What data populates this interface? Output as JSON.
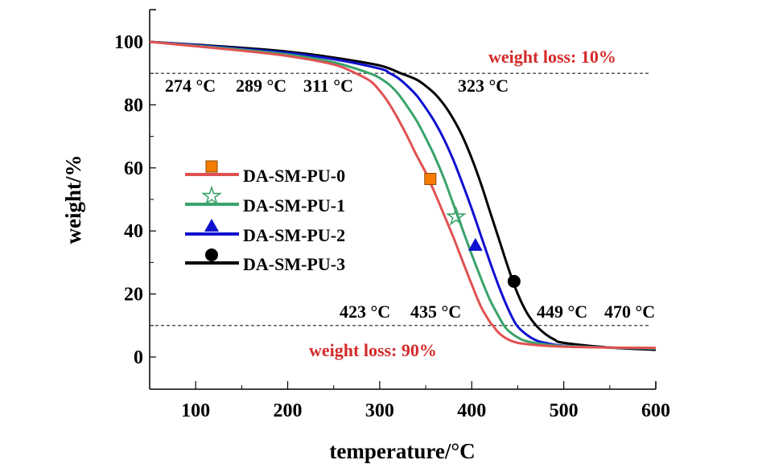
{
  "chart_data": {
    "type": "line",
    "title": "",
    "xlabel": "temperature/°C",
    "ylabel": "weight/%",
    "xlim": [
      50,
      600
    ],
    "ylim": [
      -10,
      110
    ],
    "x_ticks": [
      100,
      200,
      300,
      400,
      500,
      600
    ],
    "x_tick_labels": [
      "100",
      "200",
      "300",
      "400",
      "500",
      "600"
    ],
    "x_minor_ticks": [
      150,
      250,
      350,
      450,
      550
    ],
    "y_ticks": [
      0,
      20,
      40,
      60,
      80,
      100
    ],
    "y_tick_labels": [
      "0",
      "20",
      "40",
      "60",
      "80",
      "100"
    ],
    "y_minor_ticks": [
      10,
      30,
      50,
      70,
      90
    ],
    "grid": false,
    "legend_position": "center-left",
    "series": [
      {
        "name": "DA-SM-PU-0",
        "color": "#e05252",
        "marker": "square",
        "marker_color": "#f57c00",
        "marker_point": [
          355,
          56.5
        ],
        "x": [
          50,
          100,
          150,
          200,
          250,
          274,
          290,
          300,
          310,
          320,
          330,
          340,
          350,
          360,
          370,
          380,
          390,
          400,
          410,
          420,
          423,
          430,
          440,
          450,
          470,
          500,
          550,
          600
        ],
        "y": [
          100,
          98.6,
          97.2,
          95.5,
          92.8,
          90,
          87.5,
          84.5,
          80.5,
          75.5,
          70,
          64,
          58.5,
          52,
          45,
          38,
          30.5,
          23,
          16,
          11,
          10,
          7.5,
          5.5,
          4.5,
          3.8,
          3.3,
          3.0,
          2.9
        ]
      },
      {
        "name": "DA-SM-PU-1",
        "color": "#3aa36b",
        "marker": "star",
        "marker_color": "#3aa36b",
        "marker_point": [
          383,
          44.5
        ],
        "x": [
          50,
          100,
          150,
          200,
          250,
          289,
          300,
          310,
          320,
          330,
          340,
          350,
          360,
          370,
          380,
          390,
          400,
          410,
          420,
          430,
          435,
          440,
          450,
          460,
          480,
          500,
          550,
          600
        ],
        "y": [
          100,
          98.8,
          97.5,
          96,
          93.5,
          90,
          88.5,
          86.5,
          83.5,
          79.5,
          75,
          69.5,
          63.5,
          56.5,
          48.5,
          40.5,
          32.5,
          25,
          18,
          12.5,
          10,
          8.3,
          6.2,
          5.0,
          4.0,
          3.5,
          3.0,
          2.7
        ]
      },
      {
        "name": "DA-SM-PU-2",
        "color": "#1010d0",
        "marker": "triangle",
        "marker_color": "#1010d0",
        "marker_point": [
          404,
          35.5
        ],
        "x": [
          50,
          100,
          150,
          200,
          250,
          300,
          311,
          320,
          330,
          340,
          350,
          360,
          370,
          380,
          390,
          400,
          410,
          420,
          430,
          440,
          449,
          460,
          470,
          480,
          500,
          550,
          600
        ],
        "y": [
          100,
          99,
          97.8,
          96.5,
          94.5,
          91.5,
          90,
          88.5,
          86,
          83,
          79,
          74.5,
          69,
          62.5,
          55,
          47,
          38.5,
          30,
          22,
          15,
          10,
          7,
          5.3,
          4.5,
          3.6,
          3.0,
          2.6
        ]
      },
      {
        "name": "DA-SM-PU-3",
        "color": "#000000",
        "marker": "circle",
        "marker_color": "#000000",
        "marker_point": [
          446,
          24
        ],
        "x": [
          50,
          100,
          150,
          200,
          250,
          300,
          323,
          340,
          350,
          360,
          370,
          380,
          390,
          400,
          410,
          420,
          430,
          440,
          450,
          460,
          470,
          480,
          490,
          500,
          550,
          600
        ],
        "y": [
          100,
          99.1,
          98.1,
          96.9,
          95,
          92.5,
          90,
          88,
          86,
          83.5,
          80,
          75.5,
          70,
          63,
          55,
          46,
          37,
          28,
          20,
          14,
          10,
          7.3,
          5.5,
          4.5,
          3.0,
          2.3
        ]
      }
    ],
    "reference_lines": [
      {
        "y": 90,
        "style": "dashed",
        "label": "weight loss: 10%"
      },
      {
        "y": 10,
        "style": "dashed",
        "label": "weight loss: 90%"
      }
    ],
    "annotations": {
      "t10": [
        "274 °C",
        "289 °C",
        "311 °C",
        "323 °C"
      ],
      "t90": [
        "423 °C",
        "435 °C",
        "449 °C",
        "470 °C"
      ],
      "loss10_label": "weight loss: 10%",
      "loss90_label": "weight loss: 90%"
    }
  }
}
